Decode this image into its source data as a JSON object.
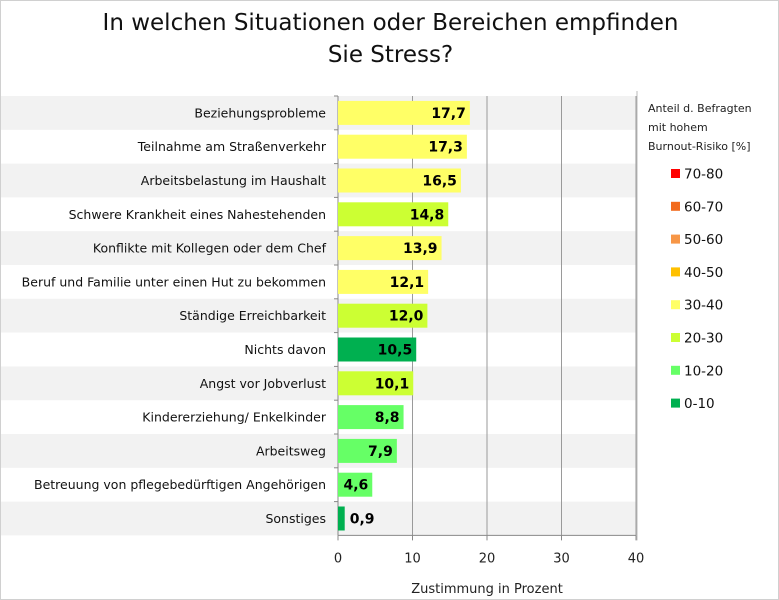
{
  "chart_data": {
    "type": "bar",
    "orientation": "horizontal",
    "title_lines": [
      "In welchen Situationen oder Bereichen empfinden",
      "Sie Stress?"
    ],
    "xlabel": "Zustimmung in Prozent",
    "xlim": [
      0,
      40
    ],
    "xticks": [
      "0",
      "10",
      "20",
      "30",
      "40"
    ],
    "grid": "vertical",
    "categories": [
      "Beziehungsprobleme",
      "Teilnahme am Straßenverkehr",
      "Arbeitsbelastung im Haushalt",
      "Schwere Krankheit eines Nahestehenden",
      "Konflikte mit Kollegen oder dem Chef",
      "Beruf und Familie unter einen Hut zu bekommen",
      "Ständige Erreichbarkeit",
      "Nichts davon",
      "Angst vor Jobverlust",
      "Kindererziehung/ Enkelkinder",
      "Arbeitsweg",
      "Betreuung von pflegebedürftigen Angehörigen",
      "Sonstiges"
    ],
    "values": [
      17.7,
      17.3,
      16.5,
      14.8,
      13.9,
      12.1,
      12.0,
      10.5,
      10.1,
      8.8,
      7.9,
      4.6,
      0.9
    ],
    "value_labels": [
      "17,7",
      "17,3",
      "16,5",
      "14,8",
      "13,9",
      "12,1",
      "12,0",
      "10,5",
      "10,1",
      "8,8",
      "7,9",
      "4,6",
      "0,9"
    ],
    "burnout_class": [
      "30-40",
      "30-40",
      "30-40",
      "20-30",
      "30-40",
      "30-40",
      "20-30",
      "0-10",
      "20-30",
      "10-20",
      "10-20",
      "10-20",
      "0-10"
    ],
    "legend": {
      "position": "right",
      "title_lines": [
        "Anteil d. Befragten",
        "mit hohem",
        "Burnout-Risiko  [%]"
      ],
      "entries": [
        {
          "label": "70-80",
          "color": "#ff0000"
        },
        {
          "label": "60-70",
          "color": "#f26b1d"
        },
        {
          "label": "50-60",
          "color": "#f79646"
        },
        {
          "label": "40-50",
          "color": "#ffc000"
        },
        {
          "label": "30-40",
          "color": "#ffff66"
        },
        {
          "label": "20-30",
          "color": "#ccff33"
        },
        {
          "label": "10-20",
          "color": "#66ff66"
        },
        {
          "label": "0-10",
          "color": "#00b050"
        }
      ]
    }
  }
}
